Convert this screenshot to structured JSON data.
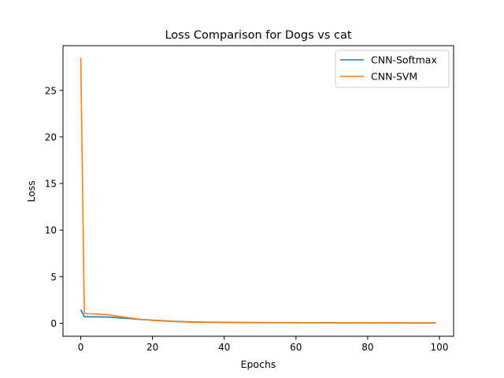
{
  "colors": {
    "softmax": "#1f77b4",
    "svm": "#ff7f0e",
    "axes": "#000000",
    "background": "#ffffff"
  },
  "chart_data": {
    "type": "line",
    "title": "Loss Comparison for Dogs vs cat",
    "xlabel": "Epochs",
    "ylabel": "Loss",
    "xlim": [
      -4.95,
      103.95
    ],
    "ylim": [
      -1.4,
      29.8
    ],
    "xticks": [
      0,
      20,
      40,
      60,
      80,
      100
    ],
    "yticks": [
      0,
      5,
      10,
      15,
      20,
      25
    ],
    "grid": false,
    "legend_position": "top-right",
    "series": [
      {
        "name": "CNN-Softmax",
        "color": "#1f77b4",
        "x": [
          0,
          1,
          3,
          5,
          8,
          10,
          13,
          16,
          20,
          25,
          30,
          35,
          40,
          45,
          50,
          55,
          60,
          65,
          70,
          75,
          80,
          85,
          90,
          95,
          99
        ],
        "y": [
          1.45,
          0.7,
          0.69,
          0.68,
          0.66,
          0.6,
          0.52,
          0.42,
          0.33,
          0.22,
          0.15,
          0.12,
          0.1,
          0.08,
          0.07,
          0.06,
          0.06,
          0.05,
          0.05,
          0.04,
          0.04,
          0.04,
          0.03,
          0.03,
          0.03
        ]
      },
      {
        "name": "CNN-SVM",
        "color": "#ff7f0e",
        "x": [
          0,
          1,
          3,
          5,
          8,
          10,
          13,
          16,
          20,
          25,
          30,
          35,
          40,
          45,
          50,
          55,
          60,
          65,
          70,
          75,
          80,
          85,
          90,
          95,
          99
        ],
        "y": [
          28.5,
          1.05,
          1.0,
          0.97,
          0.9,
          0.78,
          0.6,
          0.45,
          0.3,
          0.2,
          0.12,
          0.1,
          0.08,
          0.06,
          0.05,
          0.05,
          0.04,
          0.04,
          0.03,
          0.04,
          0.03,
          0.05,
          0.03,
          0.03,
          0.03
        ]
      }
    ]
  }
}
